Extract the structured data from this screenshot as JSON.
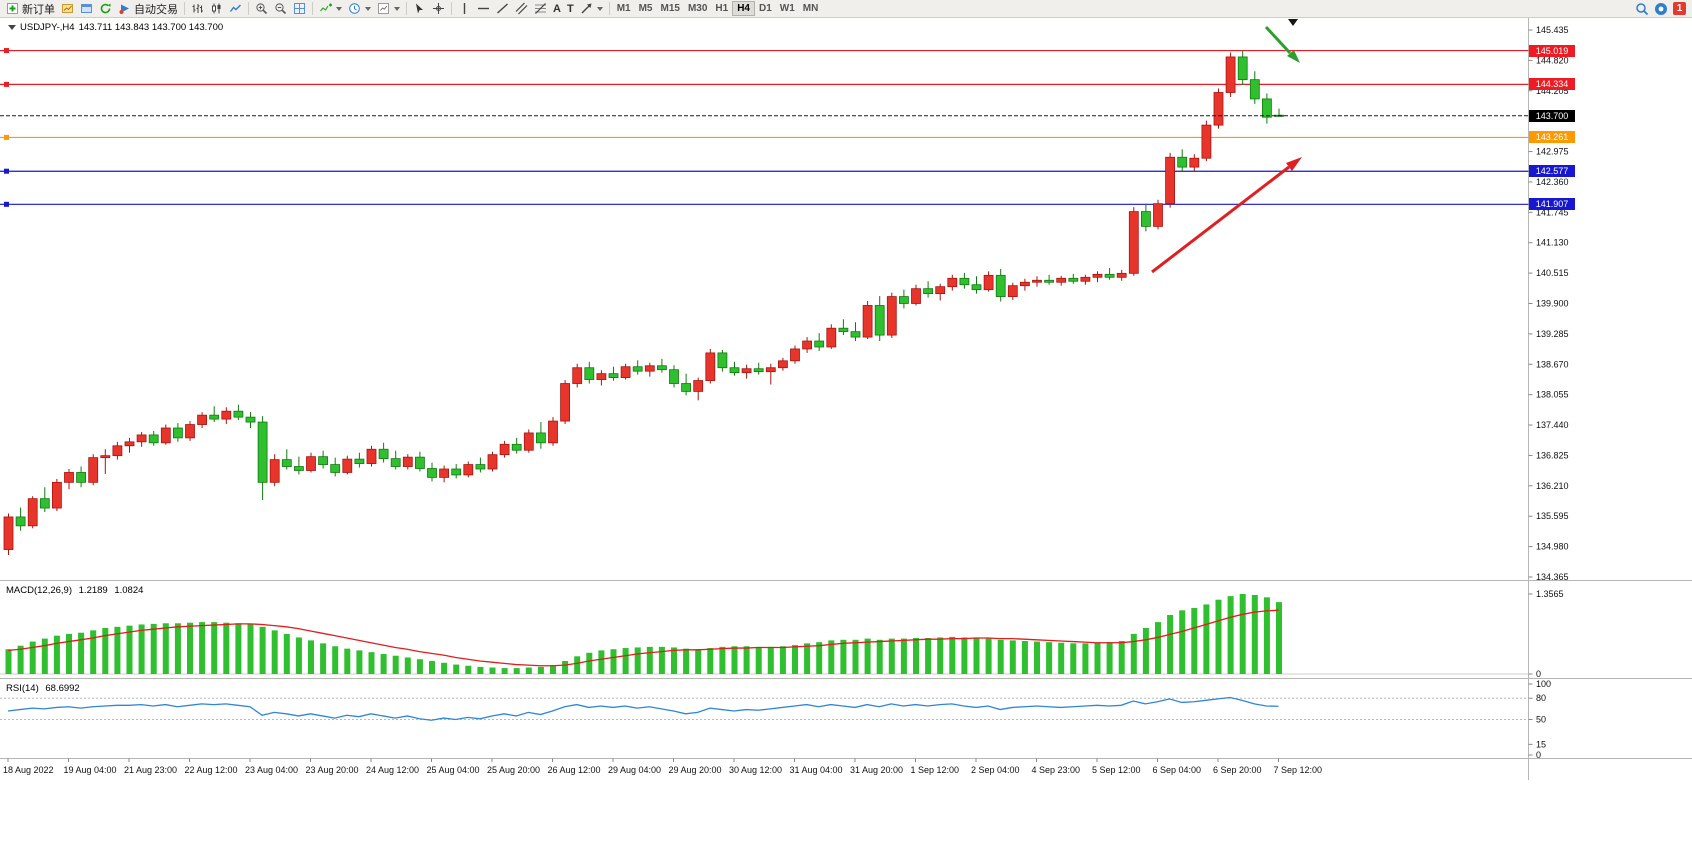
{
  "toolbar": {
    "new_order_label": "新订单",
    "algo_trading_label": "自动交易",
    "timeframes": [
      "M1",
      "M5",
      "M15",
      "M30",
      "H1",
      "H4",
      "D1",
      "W1",
      "MN"
    ],
    "active_timeframe": "H4",
    "notification_count": "1",
    "icons": {
      "text_tool": "A",
      "label_tool": "T"
    }
  },
  "chart": {
    "symbol": "USDJPY-,H4",
    "ohlc": "143.711 143.843 143.700 143.700"
  },
  "colors": {
    "bull": "#e8352b",
    "bull_border": "#a81410",
    "bear": "#2fbf2f",
    "bear_border": "#117a11",
    "macd_hist": "#2fbf2f",
    "macd_signal": "#e31c1c",
    "rsi": "#2f86d6",
    "line_red": "#ed1c24",
    "line_blue": "#1717cf",
    "line_orange": "#ff9900",
    "current": "#000000",
    "arrow_red": "#e02020",
    "arrow_green": "#2e9e2e"
  },
  "chart_data": {
    "type": "candlestick",
    "symbol": "USDJPY",
    "timeframe": "H4",
    "price_axis_ticks": [
      "145.435",
      "144.820",
      "144.205",
      "142.975",
      "142.360",
      "141.745",
      "141.130",
      "140.515",
      "139.900",
      "139.285",
      "138.670",
      "138.055",
      "137.440",
      "136.825",
      "136.210",
      "135.595",
      "134.980",
      "134.365"
    ],
    "hlines": [
      {
        "price": 145.019,
        "label": "145.019",
        "color": "#ed1c24"
      },
      {
        "price": 144.334,
        "label": "144.334",
        "color": "#ed1c24"
      },
      {
        "price": 143.261,
        "label": "143.261",
        "color": "#ff9900"
      },
      {
        "price": 142.577,
        "label": "142.577",
        "color": "#1717cf"
      },
      {
        "price": 141.907,
        "label": "141.907",
        "color": "#1717cf"
      }
    ],
    "current_price": {
      "price": 143.7,
      "label": "143.700",
      "color": "#000000"
    },
    "time_labels": [
      "18 Aug 2022",
      "19 Aug 04:00",
      "21 Aug 23:00",
      "22 Aug 12:00",
      "23 Aug 04:00",
      "23 Aug 20:00",
      "24 Aug 12:00",
      "25 Aug 04:00",
      "25 Aug 20:00",
      "26 Aug 12:00",
      "29 Aug 04:00",
      "29 Aug 20:00",
      "30 Aug 12:00",
      "31 Aug 04:00",
      "31 Aug 20:00",
      "1 Sep 12:00",
      "2 Sep 04:00",
      "4 Sep 23:00",
      "5 Sep 12:00",
      "6 Sep 04:00",
      "6 Sep 20:00",
      "7 Sep 12:00"
    ],
    "candles": [
      [
        134.92,
        135.65,
        134.81,
        135.58
      ],
      [
        135.58,
        135.77,
        135.3,
        135.4
      ],
      [
        135.4,
        136.0,
        135.35,
        135.95
      ],
      [
        135.95,
        136.18,
        135.68,
        135.76
      ],
      [
        135.76,
        136.35,
        135.7,
        136.28
      ],
      [
        136.28,
        136.55,
        136.14,
        136.48
      ],
      [
        136.48,
        136.6,
        136.18,
        136.28
      ],
      [
        136.28,
        136.85,
        136.22,
        136.78
      ],
      [
        136.78,
        136.95,
        136.45,
        136.82
      ],
      [
        136.82,
        137.1,
        136.74,
        137.02
      ],
      [
        137.02,
        137.18,
        136.88,
        137.1
      ],
      [
        137.1,
        137.3,
        137.0,
        137.24
      ],
      [
        137.24,
        137.32,
        137.02,
        137.08
      ],
      [
        137.08,
        137.45,
        137.04,
        137.38
      ],
      [
        137.38,
        137.48,
        137.1,
        137.18
      ],
      [
        137.18,
        137.52,
        137.12,
        137.45
      ],
      [
        137.45,
        137.7,
        137.38,
        137.64
      ],
      [
        137.64,
        137.82,
        137.5,
        137.56
      ],
      [
        137.56,
        137.8,
        137.46,
        137.72
      ],
      [
        137.72,
        137.85,
        137.54,
        137.6
      ],
      [
        137.6,
        137.7,
        137.38,
        137.5
      ],
      [
        137.5,
        137.62,
        135.92,
        136.28
      ],
      [
        136.28,
        136.85,
        136.2,
        136.74
      ],
      [
        136.74,
        136.95,
        136.54,
        136.6
      ],
      [
        136.6,
        136.8,
        136.44,
        136.52
      ],
      [
        136.52,
        136.88,
        136.48,
        136.8
      ],
      [
        136.8,
        136.92,
        136.56,
        136.64
      ],
      [
        136.64,
        136.78,
        136.4,
        136.48
      ],
      [
        136.48,
        136.82,
        136.44,
        136.75
      ],
      [
        136.75,
        136.88,
        136.58,
        136.66
      ],
      [
        136.66,
        137.02,
        136.6,
        136.95
      ],
      [
        136.95,
        137.08,
        136.68,
        136.76
      ],
      [
        136.76,
        136.92,
        136.54,
        136.6
      ],
      [
        136.6,
        136.85,
        136.54,
        136.79
      ],
      [
        136.79,
        136.9,
        136.5,
        136.56
      ],
      [
        136.56,
        136.68,
        136.3,
        136.38
      ],
      [
        136.38,
        136.62,
        136.28,
        136.55
      ],
      [
        136.55,
        136.65,
        136.36,
        136.43
      ],
      [
        136.43,
        136.7,
        136.38,
        136.64
      ],
      [
        136.64,
        136.78,
        136.48,
        136.55
      ],
      [
        136.55,
        136.9,
        136.5,
        136.84
      ],
      [
        136.84,
        137.12,
        136.78,
        137.05
      ],
      [
        137.05,
        137.18,
        136.86,
        136.93
      ],
      [
        136.93,
        137.35,
        136.88,
        137.28
      ],
      [
        137.28,
        137.5,
        136.96,
        137.08
      ],
      [
        137.08,
        137.6,
        137.02,
        137.52
      ],
      [
        137.52,
        138.35,
        137.46,
        138.28
      ],
      [
        138.28,
        138.68,
        138.2,
        138.6
      ],
      [
        138.6,
        138.72,
        138.28,
        138.36
      ],
      [
        138.36,
        138.55,
        138.24,
        138.48
      ],
      [
        138.48,
        138.62,
        138.34,
        138.4
      ],
      [
        138.4,
        138.68,
        138.36,
        138.62
      ],
      [
        138.62,
        138.75,
        138.46,
        138.53
      ],
      [
        138.53,
        138.7,
        138.42,
        138.64
      ],
      [
        138.64,
        138.78,
        138.5,
        138.56
      ],
      [
        138.56,
        138.65,
        138.2,
        138.28
      ],
      [
        138.28,
        138.48,
        138.04,
        138.12
      ],
      [
        138.12,
        138.4,
        137.94,
        138.34
      ],
      [
        138.34,
        138.98,
        138.28,
        138.9
      ],
      [
        138.9,
        138.96,
        138.52,
        138.6
      ],
      [
        138.6,
        138.72,
        138.44,
        138.5
      ],
      [
        138.5,
        138.66,
        138.38,
        138.58
      ],
      [
        138.58,
        138.7,
        138.46,
        138.52
      ],
      [
        138.52,
        138.68,
        138.26,
        138.6
      ],
      [
        138.6,
        138.8,
        138.54,
        138.74
      ],
      [
        138.74,
        139.05,
        138.68,
        138.98
      ],
      [
        138.98,
        139.22,
        138.9,
        139.14
      ],
      [
        139.14,
        139.3,
        138.94,
        139.02
      ],
      [
        139.02,
        139.48,
        138.98,
        139.4
      ],
      [
        139.4,
        139.58,
        139.26,
        139.33
      ],
      [
        139.33,
        139.52,
        139.14,
        139.22
      ],
      [
        139.22,
        139.95,
        139.18,
        139.86
      ],
      [
        139.86,
        140.05,
        139.14,
        139.26
      ],
      [
        139.26,
        140.12,
        139.2,
        140.04
      ],
      [
        140.04,
        140.18,
        139.8,
        139.9
      ],
      [
        139.9,
        140.28,
        139.86,
        140.2
      ],
      [
        140.2,
        140.35,
        140.02,
        140.1
      ],
      [
        140.1,
        140.3,
        139.96,
        140.24
      ],
      [
        140.24,
        140.48,
        140.16,
        140.41
      ],
      [
        140.41,
        140.52,
        140.2,
        140.28
      ],
      [
        140.28,
        140.45,
        140.1,
        140.18
      ],
      [
        140.18,
        140.55,
        140.14,
        140.47
      ],
      [
        140.47,
        140.6,
        139.94,
        140.04
      ],
      [
        140.04,
        140.32,
        139.97,
        140.26
      ],
      [
        140.26,
        140.4,
        140.16,
        140.33
      ],
      [
        140.33,
        140.45,
        140.24,
        140.37
      ],
      [
        140.37,
        140.48,
        140.28,
        140.33
      ],
      [
        140.33,
        140.46,
        140.26,
        140.41
      ],
      [
        140.41,
        140.5,
        140.3,
        140.35
      ],
      [
        140.35,
        140.48,
        140.28,
        140.43
      ],
      [
        140.43,
        140.55,
        140.33,
        140.49
      ],
      [
        140.49,
        140.62,
        140.38,
        140.43
      ],
      [
        140.43,
        140.58,
        140.36,
        140.51
      ],
      [
        140.51,
        141.85,
        140.46,
        141.76
      ],
      [
        141.76,
        141.92,
        141.36,
        141.46
      ],
      [
        141.46,
        142.0,
        141.4,
        141.92
      ],
      [
        141.92,
        142.95,
        141.84,
        142.86
      ],
      [
        142.86,
        143.02,
        142.56,
        142.66
      ],
      [
        142.66,
        142.92,
        142.58,
        142.84
      ],
      [
        142.84,
        143.6,
        142.78,
        143.51
      ],
      [
        143.51,
        144.25,
        143.44,
        144.17
      ],
      [
        144.17,
        144.98,
        144.08,
        144.89
      ],
      [
        144.89,
        145.02,
        144.32,
        144.43
      ],
      [
        144.43,
        144.6,
        143.94,
        144.04
      ],
      [
        144.04,
        144.15,
        143.54,
        143.67
      ],
      [
        143.711,
        143.843,
        143.7,
        143.7
      ]
    ],
    "macd": {
      "label": "MACD(12,26,9)",
      "current": "1.2189",
      "signal_current": "1.0824",
      "axis_max": "1.3565",
      "axis_min": "0",
      "values": [
        0.42,
        0.48,
        0.55,
        0.6,
        0.65,
        0.68,
        0.7,
        0.74,
        0.78,
        0.8,
        0.82,
        0.84,
        0.85,
        0.86,
        0.86,
        0.87,
        0.88,
        0.88,
        0.87,
        0.86,
        0.84,
        0.8,
        0.74,
        0.68,
        0.62,
        0.57,
        0.52,
        0.47,
        0.43,
        0.4,
        0.37,
        0.34,
        0.31,
        0.28,
        0.25,
        0.22,
        0.19,
        0.16,
        0.14,
        0.12,
        0.11,
        0.1,
        0.1,
        0.11,
        0.12,
        0.15,
        0.22,
        0.3,
        0.36,
        0.4,
        0.42,
        0.44,
        0.45,
        0.46,
        0.46,
        0.45,
        0.43,
        0.42,
        0.44,
        0.46,
        0.47,
        0.47,
        0.46,
        0.46,
        0.47,
        0.49,
        0.52,
        0.54,
        0.57,
        0.58,
        0.58,
        0.6,
        0.58,
        0.6,
        0.6,
        0.61,
        0.61,
        0.62,
        0.63,
        0.62,
        0.61,
        0.6,
        0.58,
        0.57,
        0.56,
        0.55,
        0.54,
        0.53,
        0.52,
        0.52,
        0.53,
        0.54,
        0.56,
        0.68,
        0.78,
        0.88,
        1.0,
        1.08,
        1.12,
        1.18,
        1.26,
        1.32,
        1.3565,
        1.34,
        1.3,
        1.2189
      ],
      "signal": [
        0.4,
        0.42,
        0.45,
        0.48,
        0.52,
        0.55,
        0.58,
        0.61,
        0.65,
        0.68,
        0.71,
        0.74,
        0.76,
        0.78,
        0.8,
        0.81,
        0.82,
        0.83,
        0.84,
        0.85,
        0.85,
        0.84,
        0.82,
        0.8,
        0.77,
        0.73,
        0.69,
        0.65,
        0.61,
        0.57,
        0.53,
        0.49,
        0.45,
        0.42,
        0.38,
        0.35,
        0.32,
        0.28,
        0.25,
        0.22,
        0.2,
        0.18,
        0.16,
        0.15,
        0.14,
        0.14,
        0.15,
        0.18,
        0.22,
        0.25,
        0.28,
        0.31,
        0.34,
        0.36,
        0.38,
        0.4,
        0.41,
        0.41,
        0.42,
        0.43,
        0.44,
        0.44,
        0.45,
        0.45,
        0.45,
        0.46,
        0.47,
        0.48,
        0.5,
        0.52,
        0.53,
        0.54,
        0.55,
        0.56,
        0.57,
        0.58,
        0.59,
        0.59,
        0.6,
        0.6,
        0.61,
        0.61,
        0.6,
        0.6,
        0.59,
        0.58,
        0.57,
        0.56,
        0.55,
        0.54,
        0.53,
        0.53,
        0.53,
        0.55,
        0.58,
        0.62,
        0.67,
        0.72,
        0.78,
        0.84,
        0.9,
        0.96,
        1.01,
        1.05,
        1.07,
        1.0824
      ]
    },
    "rsi": {
      "label": "RSI(14)",
      "current": "68.6992",
      "ticks": [
        "100",
        "80",
        "50",
        "15",
        "0"
      ],
      "levels": [
        80,
        50
      ],
      "values": [
        62,
        64,
        66,
        65,
        67,
        68,
        66,
        68,
        69,
        70,
        70,
        71,
        69,
        71,
        68,
        70,
        72,
        71,
        72,
        70,
        68,
        56,
        60,
        58,
        55,
        58,
        55,
        52,
        56,
        54,
        58,
        55,
        52,
        55,
        51,
        49,
        52,
        50,
        53,
        51,
        55,
        58,
        55,
        60,
        57,
        62,
        68,
        71,
        67,
        69,
        67,
        69,
        66,
        68,
        65,
        62,
        58,
        60,
        66,
        64,
        62,
        64,
        63,
        65,
        67,
        69,
        71,
        68,
        71,
        69,
        67,
        71,
        68,
        72,
        69,
        71,
        69,
        71,
        72,
        69,
        67,
        69,
        64,
        67,
        68,
        69,
        68,
        67,
        68,
        69,
        70,
        69,
        70,
        76,
        72,
        75,
        79,
        74,
        75,
        77,
        79,
        81,
        77,
        72,
        69,
        68.7
      ]
    }
  }
}
